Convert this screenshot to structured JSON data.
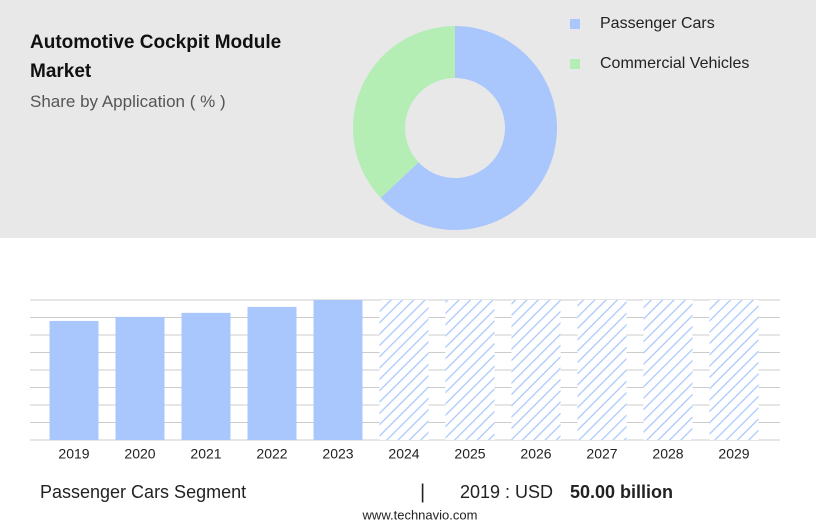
{
  "chart_data": [
    {
      "type": "donut",
      "title": "Automotive Cockpit Module Market",
      "subtitle": "Share by Application ( % )",
      "categories": [
        "Passenger Cars",
        "Commercial Vehicles"
      ],
      "values": [
        63,
        37
      ],
      "colors": [
        "#a9c7fd",
        "#b4eeb4"
      ],
      "legend": "top-right"
    },
    {
      "type": "bar",
      "categories": [
        "2019",
        "2020",
        "2021",
        "2022",
        "2023",
        "2024",
        "2025",
        "2026",
        "2027",
        "2028",
        "2029"
      ],
      "values": [
        50,
        51.7,
        53.4,
        55.9,
        58.8,
        null,
        null,
        null,
        null,
        null,
        null
      ],
      "color": "#a9c7fd",
      "ylim": [
        0,
        58.8
      ],
      "grid": true
    }
  ],
  "footer": {
    "segment": "Passenger Cars Segment",
    "separator": "|",
    "year_label": "2019 : USD",
    "value": "50.00 billion",
    "source": "www.technavio.com"
  }
}
